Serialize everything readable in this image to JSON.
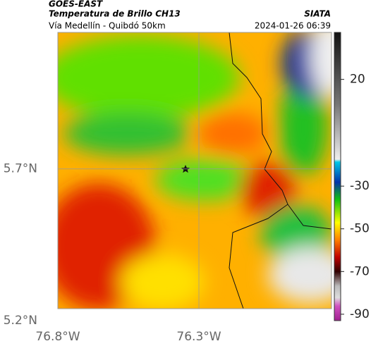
{
  "header": {
    "source": "GOES-EAST",
    "title": "Temperatura de Brillo CH13",
    "brand": "SIATA",
    "subtitle": "Vía Medellín - Quibdó 50km",
    "timestamp": "2024-01-26 06:39"
  },
  "map": {
    "lonlim": [
      -76.8,
      -75.83
    ],
    "latlim": [
      5.2,
      6.15
    ],
    "lonticks": [
      {
        "value": -76.8,
        "label": "76.8°W"
      },
      {
        "value": -76.3,
        "label": "76.3°W"
      }
    ],
    "latticks": [
      {
        "value": 5.2,
        "label": "5.2°N"
      },
      {
        "value": 5.7,
        "label": "5.7°N"
      }
    ]
  },
  "colorbar": {
    "lim": [
      -93,
      42
    ],
    "ticks": [
      20,
      -30,
      -50,
      -70,
      -90
    ]
  }
}
